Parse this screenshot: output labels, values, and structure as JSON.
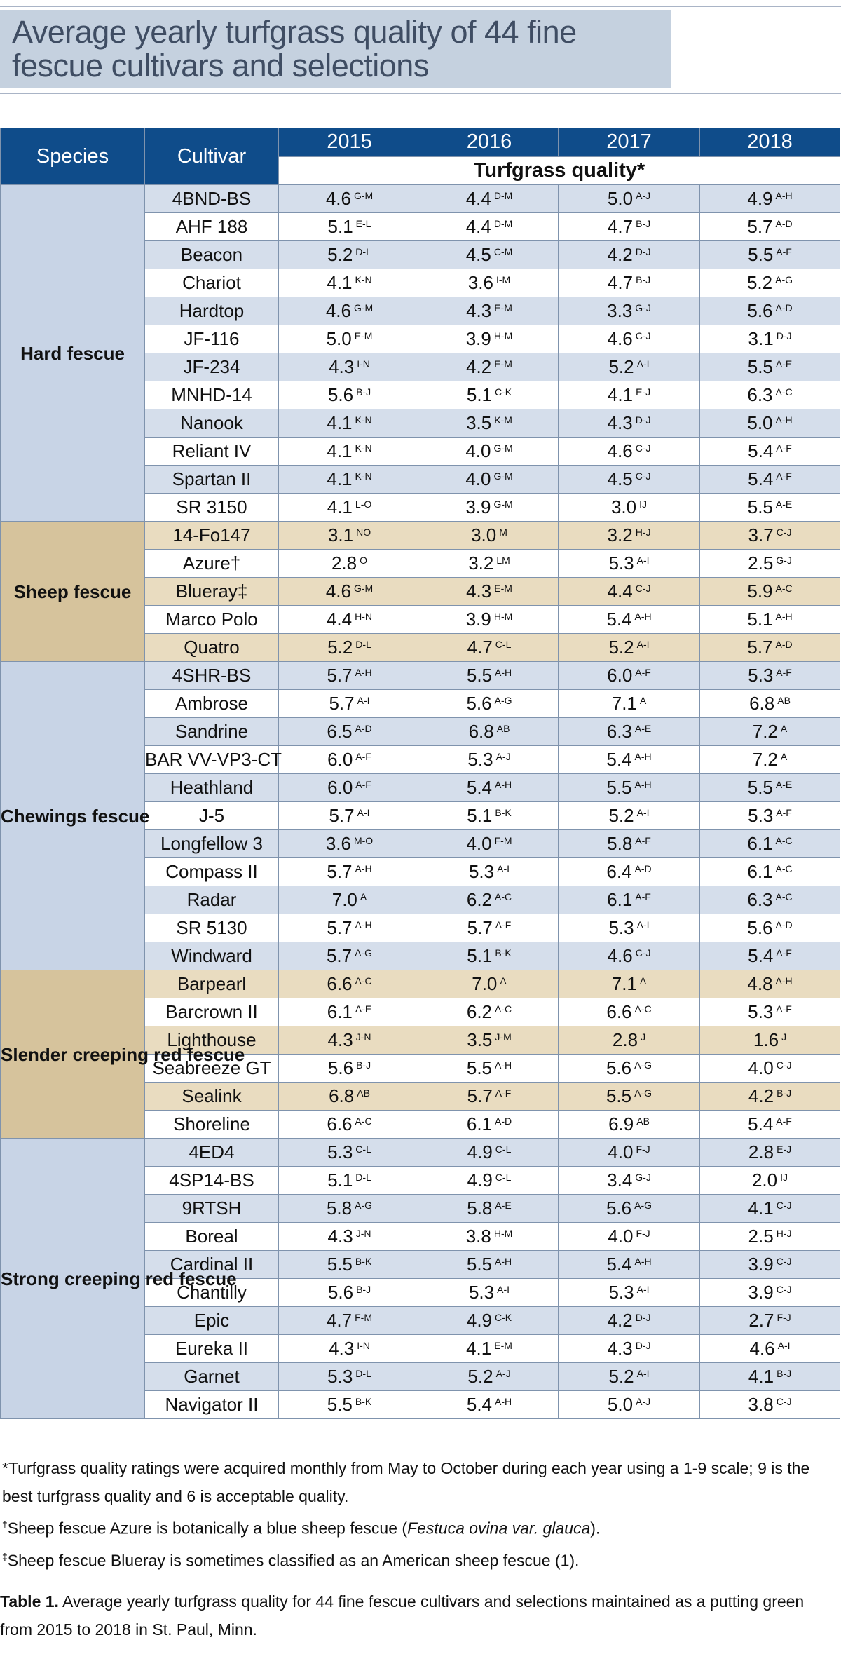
{
  "title": {
    "line1": "Average yearly turfgrass quality of 44 fine",
    "line2": "fescue cultivars and selections"
  },
  "table": {
    "header": {
      "species": "Species",
      "cultivar": "Cultivar",
      "years": [
        "2015",
        "2016",
        "2017",
        "2018"
      ],
      "subheader": "Turfgrass quality*"
    },
    "groups": [
      {
        "species": "Hard fescue",
        "shade": "blue",
        "rows": [
          {
            "cultivar": "4BND-BS",
            "cells": [
              [
                "4.6",
                "G-M"
              ],
              [
                "4.4",
                "D-M"
              ],
              [
                "5.0",
                "A-J"
              ],
              [
                "4.9",
                "A-H"
              ]
            ]
          },
          {
            "cultivar": "AHF 188",
            "cells": [
              [
                "5.1",
                "E-L"
              ],
              [
                "4.4",
                "D-M"
              ],
              [
                "4.7",
                "B-J"
              ],
              [
                "5.7",
                "A-D"
              ]
            ]
          },
          {
            "cultivar": "Beacon",
            "cells": [
              [
                "5.2",
                "D-L"
              ],
              [
                "4.5",
                "C-M"
              ],
              [
                "4.2",
                "D-J"
              ],
              [
                "5.5",
                "A-F"
              ]
            ]
          },
          {
            "cultivar": "Chariot",
            "cells": [
              [
                "4.1",
                "K-N"
              ],
              [
                "3.6",
                "I-M"
              ],
              [
                "4.7",
                "B-J"
              ],
              [
                "5.2",
                "A-G"
              ]
            ]
          },
          {
            "cultivar": "Hardtop",
            "cells": [
              [
                "4.6",
                "G-M"
              ],
              [
                "4.3",
                "E-M"
              ],
              [
                "3.3",
                "G-J"
              ],
              [
                "5.6",
                "A-D"
              ]
            ]
          },
          {
            "cultivar": "JF-116",
            "cells": [
              [
                "5.0",
                "E-M"
              ],
              [
                "3.9",
                "H-M"
              ],
              [
                "4.6",
                "C-J"
              ],
              [
                "3.1",
                "D-J"
              ]
            ]
          },
          {
            "cultivar": "JF-234",
            "cells": [
              [
                "4.3",
                "I-N"
              ],
              [
                "4.2",
                "E-M"
              ],
              [
                "5.2",
                "A-I"
              ],
              [
                "5.5",
                "A-E"
              ]
            ]
          },
          {
            "cultivar": "MNHD-14",
            "cells": [
              [
                "5.6",
                "B-J"
              ],
              [
                "5.1",
                "C-K"
              ],
              [
                "4.1",
                "E-J"
              ],
              [
                "6.3",
                "A-C"
              ]
            ]
          },
          {
            "cultivar": "Nanook",
            "cells": [
              [
                "4.1",
                "K-N"
              ],
              [
                "3.5",
                "K-M"
              ],
              [
                "4.3",
                "D-J"
              ],
              [
                "5.0",
                "A-H"
              ]
            ]
          },
          {
            "cultivar": "Reliant IV",
            "cells": [
              [
                "4.1",
                "K-N"
              ],
              [
                "4.0",
                "G-M"
              ],
              [
                "4.6",
                "C-J"
              ],
              [
                "5.4",
                "A-F"
              ]
            ]
          },
          {
            "cultivar": "Spartan II",
            "cells": [
              [
                "4.1",
                "K-N"
              ],
              [
                "4.0",
                "G-M"
              ],
              [
                "4.5",
                "C-J"
              ],
              [
                "5.4",
                "A-F"
              ]
            ]
          },
          {
            "cultivar": "SR 3150",
            "cells": [
              [
                "4.1",
                "L-O"
              ],
              [
                "3.9",
                "G-M"
              ],
              [
                "3.0",
                "IJ"
              ],
              [
                "5.5",
                "A-E"
              ]
            ]
          }
        ]
      },
      {
        "species": "Sheep fescue",
        "shade": "tan",
        "rows": [
          {
            "cultivar": "14-Fo147",
            "cells": [
              [
                "3.1",
                "NO"
              ],
              [
                "3.0",
                "M"
              ],
              [
                "3.2",
                "H-J"
              ],
              [
                "3.7",
                "C-J"
              ]
            ]
          },
          {
            "cultivar": "Azure†",
            "cells": [
              [
                "2.8",
                "O"
              ],
              [
                "3.2",
                "LM"
              ],
              [
                "5.3",
                "A-I"
              ],
              [
                "2.5",
                "G-J"
              ]
            ]
          },
          {
            "cultivar": "Blueray‡",
            "cells": [
              [
                "4.6",
                "G-M"
              ],
              [
                "4.3",
                "E-M"
              ],
              [
                "4.4",
                "C-J"
              ],
              [
                "5.9",
                "A-C"
              ]
            ]
          },
          {
            "cultivar": "Marco Polo",
            "cells": [
              [
                "4.4",
                "H-N"
              ],
              [
                "3.9",
                "H-M"
              ],
              [
                "5.4",
                "A-H"
              ],
              [
                "5.1",
                "A-H"
              ]
            ]
          },
          {
            "cultivar": "Quatro",
            "cells": [
              [
                "5.2",
                "D-L"
              ],
              [
                "4.7",
                "C-L"
              ],
              [
                "5.2",
                "A-I"
              ],
              [
                "5.7",
                "A-D"
              ]
            ]
          }
        ]
      },
      {
        "species": "Chewings fescue",
        "shade": "blue",
        "rows": [
          {
            "cultivar": "4SHR-BS",
            "cells": [
              [
                "5.7",
                "A-H"
              ],
              [
                "5.5",
                "A-H"
              ],
              [
                "6.0",
                "A-F"
              ],
              [
                "5.3",
                "A-F"
              ]
            ]
          },
          {
            "cultivar": "Ambrose",
            "cells": [
              [
                "5.7",
                "A-I"
              ],
              [
                "5.6",
                "A-G"
              ],
              [
                "7.1",
                "A"
              ],
              [
                "6.8",
                "AB"
              ]
            ]
          },
          {
            "cultivar": "Sandrine",
            "cells": [
              [
                "6.5",
                "A-D"
              ],
              [
                "6.8",
                "AB"
              ],
              [
                "6.3",
                "A-E"
              ],
              [
                "7.2",
                "A"
              ]
            ]
          },
          {
            "cultivar": "BAR VV-VP3-CT",
            "cells": [
              [
                "6.0",
                "A-F"
              ],
              [
                "5.3",
                "A-J"
              ],
              [
                "5.4",
                "A-H"
              ],
              [
                "7.2",
                "A"
              ]
            ]
          },
          {
            "cultivar": "Heathland",
            "cells": [
              [
                "6.0",
                "A-F"
              ],
              [
                "5.4",
                "A-H"
              ],
              [
                "5.5",
                "A-H"
              ],
              [
                "5.5",
                "A-E"
              ]
            ]
          },
          {
            "cultivar": "J-5",
            "cells": [
              [
                "5.7",
                "A-I"
              ],
              [
                "5.1",
                "B-K"
              ],
              [
                "5.2",
                "A-I"
              ],
              [
                "5.3",
                "A-F"
              ]
            ]
          },
          {
            "cultivar": "Longfellow 3",
            "cells": [
              [
                "3.6",
                "M-O"
              ],
              [
                "4.0",
                "F-M"
              ],
              [
                "5.8",
                "A-F"
              ],
              [
                "6.1",
                "A-C"
              ]
            ]
          },
          {
            "cultivar": "Compass II",
            "cells": [
              [
                "5.7",
                "A-H"
              ],
              [
                "5.3",
                "A-I"
              ],
              [
                "6.4",
                "A-D"
              ],
              [
                "6.1",
                "A-C"
              ]
            ]
          },
          {
            "cultivar": "Radar",
            "cells": [
              [
                "7.0",
                "A"
              ],
              [
                "6.2",
                "A-C"
              ],
              [
                "6.1",
                "A-F"
              ],
              [
                "6.3",
                "A-C"
              ]
            ]
          },
          {
            "cultivar": "SR 5130",
            "cells": [
              [
                "5.7",
                "A-H"
              ],
              [
                "5.7",
                "A-F"
              ],
              [
                "5.3",
                "A-I"
              ],
              [
                "5.6",
                "A-D"
              ]
            ]
          },
          {
            "cultivar": "Windward",
            "cells": [
              [
                "5.7",
                "A-G"
              ],
              [
                "5.1",
                "B-K"
              ],
              [
                "4.6",
                "C-J"
              ],
              [
                "5.4",
                "A-F"
              ]
            ]
          }
        ]
      },
      {
        "species": "Slender creeping red fescue",
        "shade": "tan",
        "rows": [
          {
            "cultivar": "Barpearl",
            "cells": [
              [
                "6.6",
                "A-C"
              ],
              [
                "7.0",
                "A"
              ],
              [
                "7.1",
                "A"
              ],
              [
                "4.8",
                "A-H"
              ]
            ]
          },
          {
            "cultivar": "Barcrown II",
            "cells": [
              [
                "6.1",
                "A-E"
              ],
              [
                "6.2",
                "A-C"
              ],
              [
                "6.6",
                "A-C"
              ],
              [
                "5.3",
                "A-F"
              ]
            ]
          },
          {
            "cultivar": "Lighthouse",
            "cells": [
              [
                "4.3",
                "J-N"
              ],
              [
                "3.5",
                "J-M"
              ],
              [
                "2.8",
                "J"
              ],
              [
                "1.6",
                "J"
              ]
            ]
          },
          {
            "cultivar": "Seabreeze GT",
            "cells": [
              [
                "5.6",
                "B-J"
              ],
              [
                "5.5",
                "A-H"
              ],
              [
                "5.6",
                "A-G"
              ],
              [
                "4.0",
                "C-J"
              ]
            ]
          },
          {
            "cultivar": "Sealink",
            "cells": [
              [
                "6.8",
                "AB"
              ],
              [
                "5.7",
                "A-F"
              ],
              [
                "5.5",
                "A-G"
              ],
              [
                "4.2",
                "B-J"
              ]
            ]
          },
          {
            "cultivar": "Shoreline",
            "cells": [
              [
                "6.6",
                "A-C"
              ],
              [
                "6.1",
                "A-D"
              ],
              [
                "6.9",
                "AB"
              ],
              [
                "5.4",
                "A-F"
              ]
            ]
          }
        ]
      },
      {
        "species": "Strong creeping red fescue",
        "shade": "blue",
        "rows": [
          {
            "cultivar": "4ED4",
            "cells": [
              [
                "5.3",
                "C-L"
              ],
              [
                "4.9",
                "C-L"
              ],
              [
                "4.0",
                "F-J"
              ],
              [
                "2.8",
                "E-J"
              ]
            ]
          },
          {
            "cultivar": "4SP14-BS",
            "cells": [
              [
                "5.1",
                "D-L"
              ],
              [
                "4.9",
                "C-L"
              ],
              [
                "3.4",
                "G-J"
              ],
              [
                "2.0",
                "IJ"
              ]
            ]
          },
          {
            "cultivar": "9RTSH",
            "cells": [
              [
                "5.8",
                "A-G"
              ],
              [
                "5.8",
                "A-E"
              ],
              [
                "5.6",
                "A-G"
              ],
              [
                "4.1",
                "C-J"
              ]
            ]
          },
          {
            "cultivar": "Boreal",
            "cells": [
              [
                "4.3",
                "J-N"
              ],
              [
                "3.8",
                "H-M"
              ],
              [
                "4.0",
                "F-J"
              ],
              [
                "2.5",
                "H-J"
              ]
            ]
          },
          {
            "cultivar": "Cardinal II",
            "cells": [
              [
                "5.5",
                "B-K"
              ],
              [
                "5.5",
                "A-H"
              ],
              [
                "5.4",
                "A-H"
              ],
              [
                "3.9",
                "C-J"
              ]
            ]
          },
          {
            "cultivar": "Chantilly",
            "cells": [
              [
                "5.6",
                "B-J"
              ],
              [
                "5.3",
                "A-I"
              ],
              [
                "5.3",
                "A-I"
              ],
              [
                "3.9",
                "C-J"
              ]
            ]
          },
          {
            "cultivar": "Epic",
            "cells": [
              [
                "4.7",
                "F-M"
              ],
              [
                "4.9",
                "C-K"
              ],
              [
                "4.2",
                "D-J"
              ],
              [
                "2.7",
                "F-J"
              ]
            ]
          },
          {
            "cultivar": "Eureka II",
            "cells": [
              [
                "4.3",
                "I-N"
              ],
              [
                "4.1",
                "E-M"
              ],
              [
                "4.3",
                "D-J"
              ],
              [
                "4.6",
                "A-I"
              ]
            ]
          },
          {
            "cultivar": "Garnet",
            "cells": [
              [
                "5.3",
                "D-L"
              ],
              [
                "5.2",
                "A-J"
              ],
              [
                "5.2",
                "A-I"
              ],
              [
                "4.1",
                "B-J"
              ]
            ]
          },
          {
            "cultivar": "Navigator II",
            "cells": [
              [
                "5.5",
                "B-K"
              ],
              [
                "5.4",
                "A-H"
              ],
              [
                "5.0",
                "A-J"
              ],
              [
                "3.8",
                "C-J"
              ]
            ]
          }
        ]
      }
    ]
  },
  "footnotes": {
    "star": "*Turfgrass quality ratings were acquired monthly from May to October during each year using a 1-9 scale; 9 is the best turfgrass quality and 6 is acceptable quality.",
    "dagger_mark": "†",
    "dagger_pre": "Sheep fescue Azure is botanically a blue sheep fescue (",
    "dagger_italic": "Festuca ovina var. glauca",
    "dagger_post": ").",
    "ddagger_mark": "‡",
    "ddagger": "Sheep fescue Blueray is sometimes classified as an American sheep fescue (1)."
  },
  "caption": {
    "label": "Table 1.",
    "text": " Average yearly turfgrass quality for 44 fine fescue cultivars and selections maintained as a putting green from 2015 to 2018 in St. Paul, Minn."
  },
  "colors": {
    "header_blue": "#0f4c8a",
    "species_blue": "#c8d4e6",
    "species_tan": "#d6c39c",
    "title_box": "#c5d1df",
    "title_text": "#3f4d63"
  }
}
